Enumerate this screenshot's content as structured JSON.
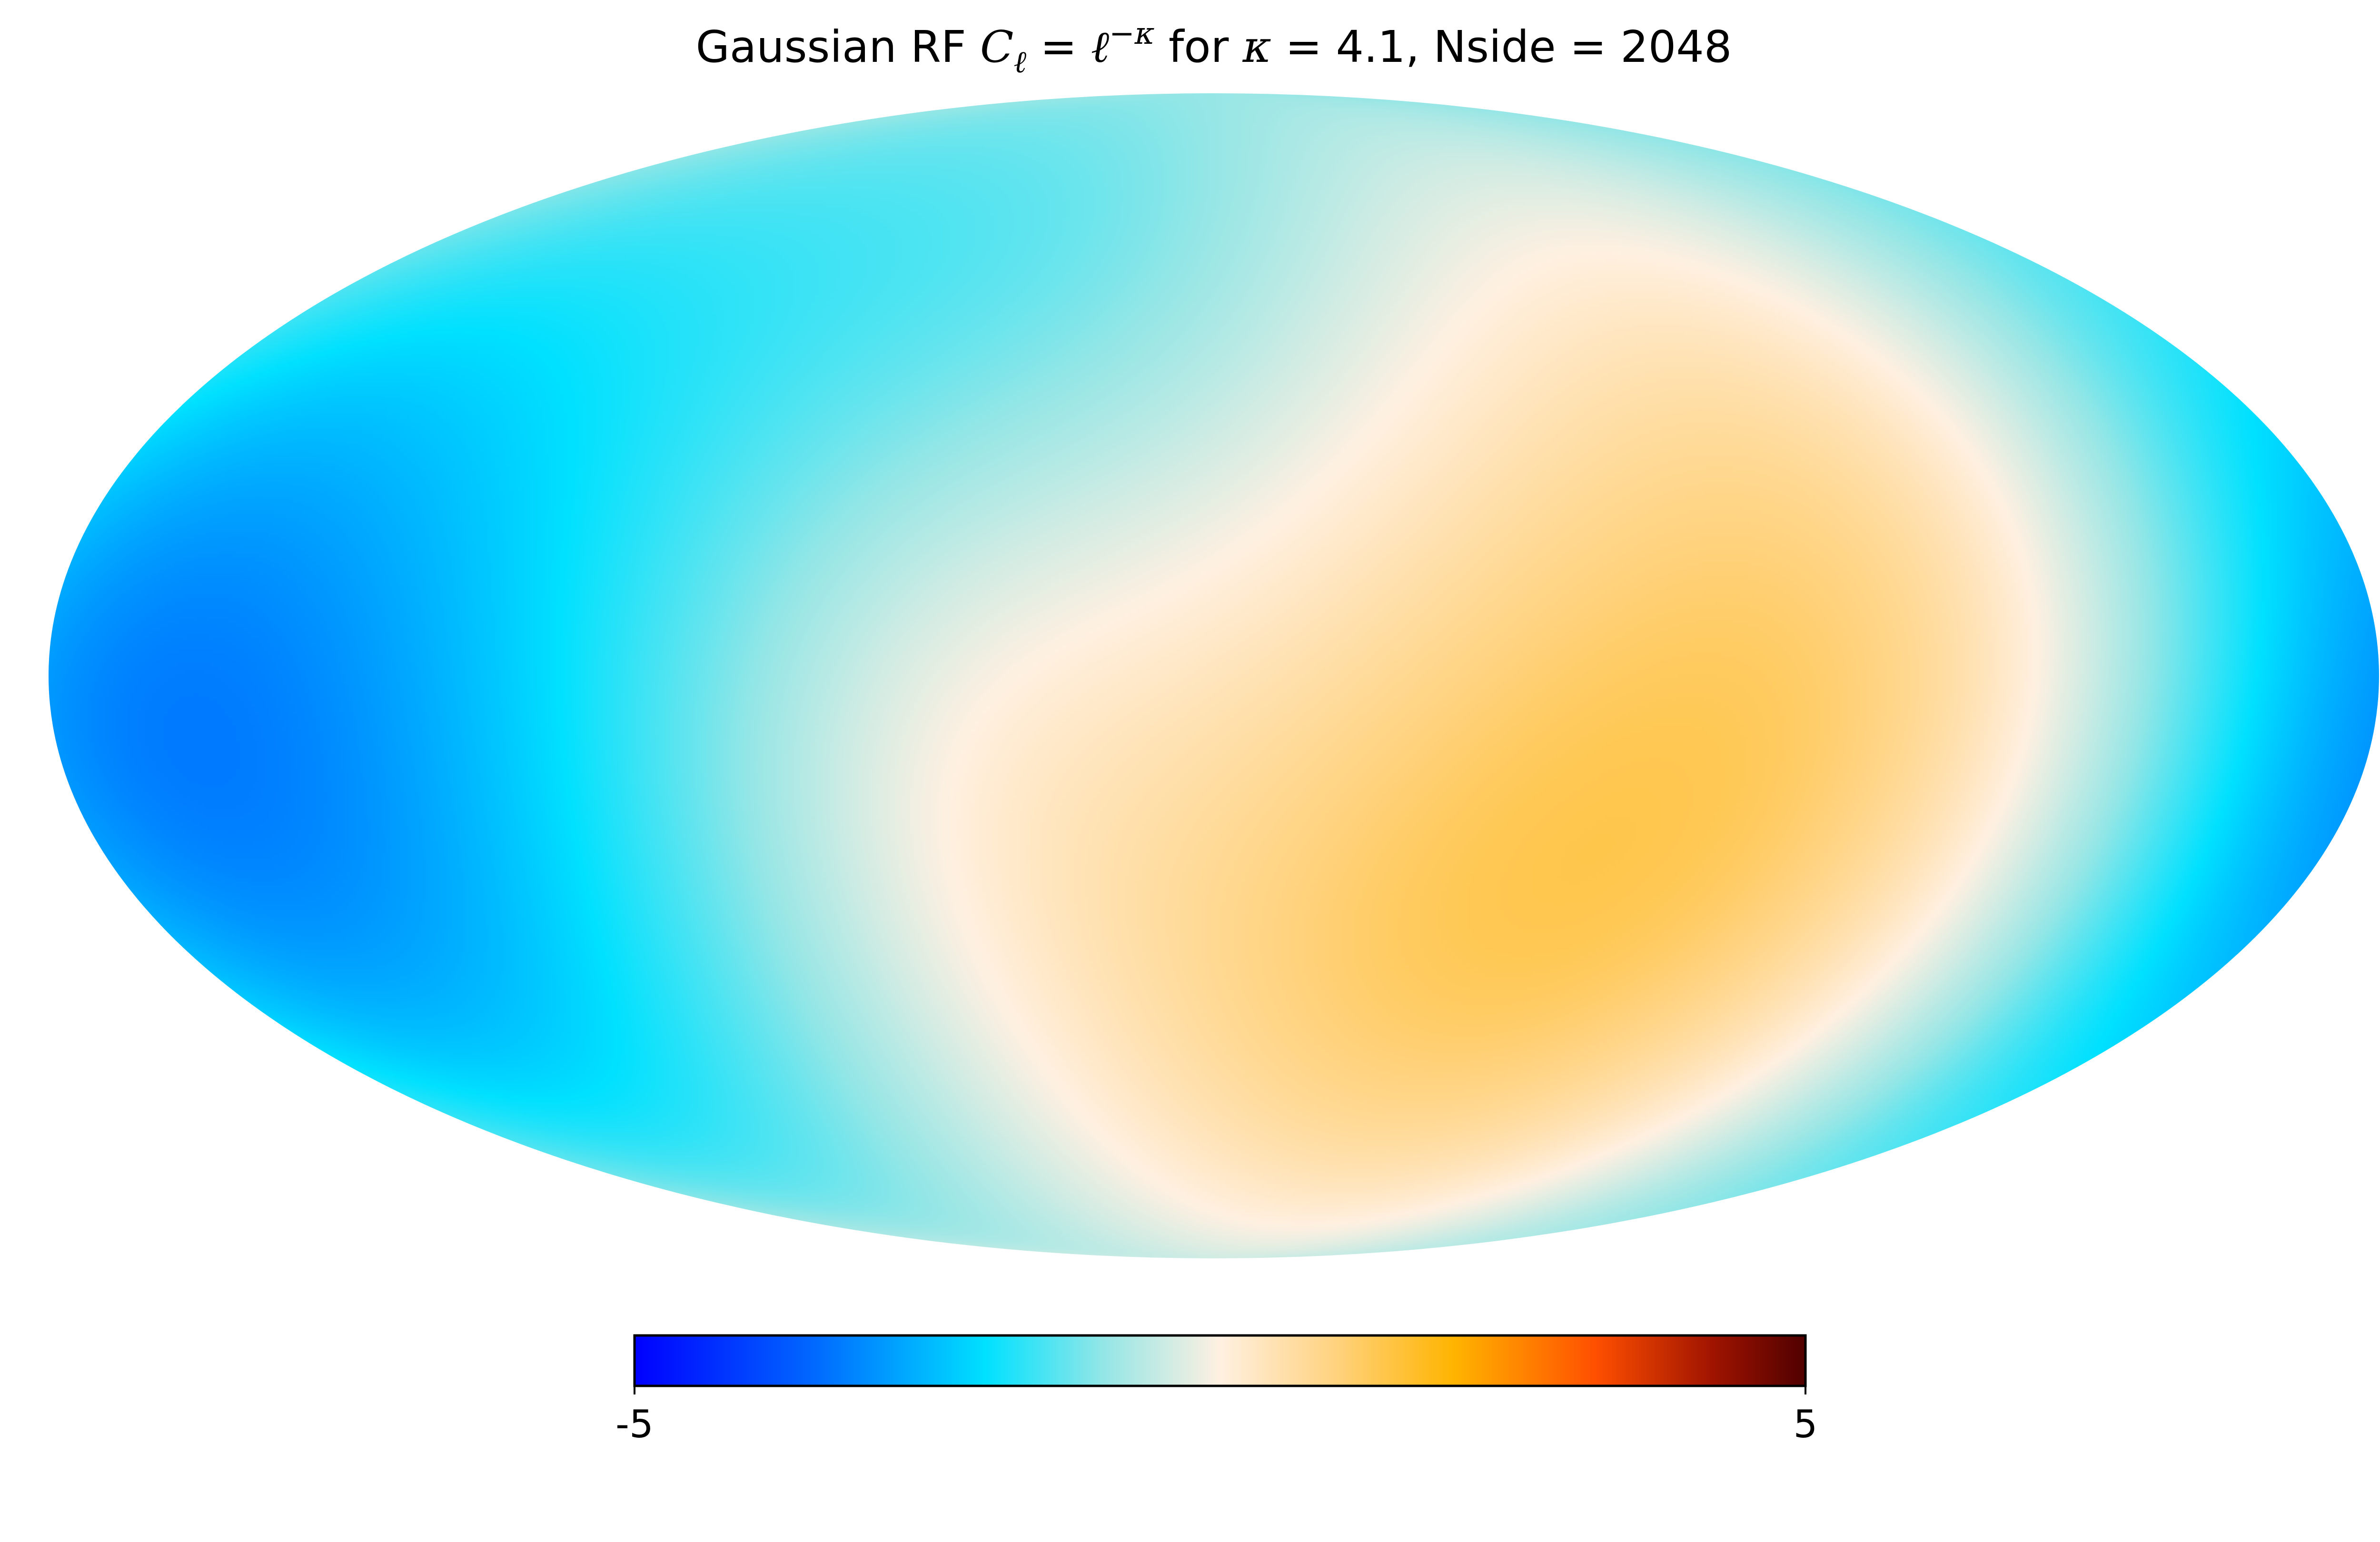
{
  "chart_data": {
    "type": "heatmap",
    "projection": "mollweide",
    "title": {
      "prefix": "Gaussian RF ",
      "c_symbol": "C",
      "c_subscript": "ℓ",
      "equals1": " = ",
      "ell": "ℓ",
      "exponent": "−κ",
      "for_text": " for ",
      "kappa": "κ",
      "equals2": " = 4.1, Nside  = 2048"
    },
    "colorbar": {
      "min": -5,
      "max": 5,
      "min_label": "-5",
      "max_label": "5",
      "colormap": [
        {
          "value": -5.0,
          "color": "#0000ff"
        },
        {
          "value": -3.5,
          "color": "#0066ff"
        },
        {
          "value": -2.0,
          "color": "#00e1ff"
        },
        {
          "value": -1.0,
          "color": "#93e6e6"
        },
        {
          "value": 0.0,
          "color": "#fff0e1"
        },
        {
          "value": 1.0,
          "color": "#ffd27d"
        },
        {
          "value": 2.0,
          "color": "#ffb400"
        },
        {
          "value": 3.2,
          "color": "#ff5000"
        },
        {
          "value": 4.2,
          "color": "#a01400"
        },
        {
          "value": 5.0,
          "color": "#500000"
        }
      ]
    },
    "field_features": [
      {
        "lon": 120,
        "lat": 10,
        "sigma": 45,
        "amp": 1.3
      },
      {
        "lon": 60,
        "lat": -25,
        "sigma": 45,
        "amp": 1.2
      },
      {
        "lon": 20,
        "lat": -40,
        "sigma": 35,
        "amp": 0.6
      },
      {
        "lon": -40,
        "lat": -10,
        "sigma": 30,
        "amp": 0.6
      },
      {
        "lon": -30,
        "lat": 55,
        "sigma": 30,
        "amp": -0.6
      },
      {
        "lon": -90,
        "lat": 30,
        "sigma": 40,
        "amp": -0.5
      },
      {
        "lon": -140,
        "lat": -25,
        "sigma": 45,
        "amp": -1.5
      },
      {
        "lon": 170,
        "lat": -10,
        "sigma": 40,
        "amp": -1.3
      },
      {
        "lon": -170,
        "lat": 20,
        "sigma": 40,
        "amp": -0.9
      }
    ],
    "background_value": -0.5
  }
}
